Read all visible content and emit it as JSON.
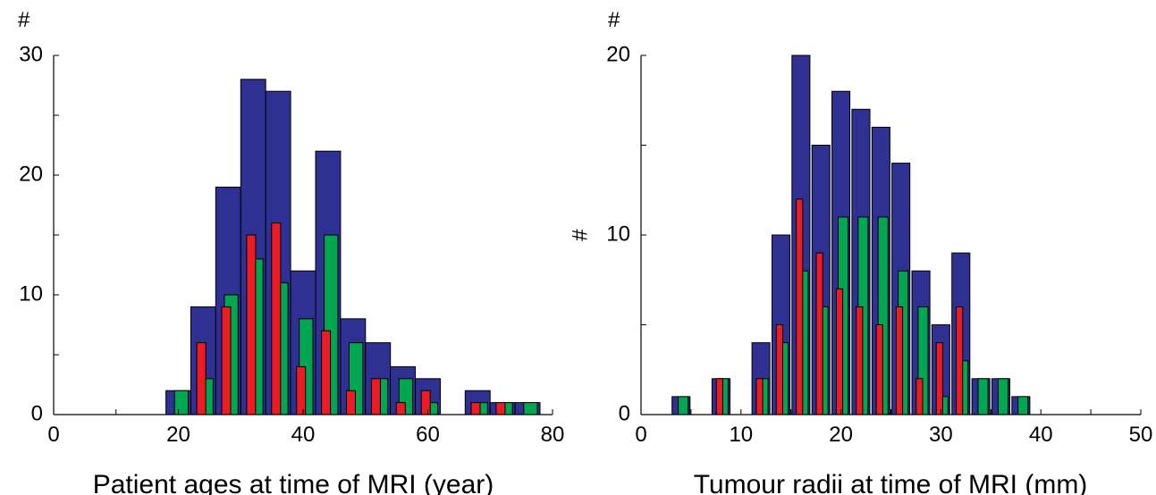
{
  "colors": {
    "all": "#2e3192",
    "green": "#00a650",
    "red": "#ed1c24",
    "edge": "#000000"
  },
  "chart_data": [
    {
      "type": "bar",
      "title": "",
      "xlabel": "Patient ages at time of MRI (year)",
      "ylabel": "#",
      "xlim": [
        0,
        80
      ],
      "ylim": [
        0,
        30
      ],
      "xticks": [
        0,
        20,
        40,
        60,
        80
      ],
      "yticks": [
        0,
        10,
        20,
        30
      ],
      "grid": false,
      "legend": "none",
      "bin_width": 4,
      "series": [
        {
          "key": "all",
          "color": "#2e3192",
          "x": [
            20,
            24,
            28,
            32,
            36,
            40,
            44,
            48,
            52,
            56,
            60,
            68,
            72,
            76
          ],
          "values": [
            2,
            9,
            19,
            28,
            27,
            12,
            22,
            8,
            6,
            4,
            3,
            2,
            1,
            1
          ]
        },
        {
          "key": "green",
          "color": "#00a650",
          "x": [
            20,
            24,
            28,
            32,
            36,
            40,
            44,
            48,
            52,
            56,
            60,
            68,
            72,
            76
          ],
          "values": [
            2,
            3,
            10,
            13,
            11,
            8,
            15,
            6,
            3,
            3,
            1,
            1,
            1,
            1
          ]
        },
        {
          "key": "red",
          "color": "#ed1c24",
          "x": [
            24,
            28,
            32,
            36,
            40,
            44,
            48,
            52,
            56,
            60,
            68,
            72
          ],
          "values": [
            6,
            9,
            15,
            16,
            4,
            7,
            2,
            3,
            1,
            2,
            1,
            1
          ]
        }
      ]
    },
    {
      "type": "bar",
      "title": "",
      "xlabel": "Tumour radii at time of MRI (mm)",
      "ylabel": "#",
      "y_side_label": "#",
      "xlim": [
        0,
        50
      ],
      "ylim": [
        0,
        20
      ],
      "xticks": [
        0,
        10,
        20,
        30,
        40,
        50
      ],
      "yticks": [
        0,
        10,
        20
      ],
      "grid": false,
      "legend": "none",
      "bin_width": 1.8,
      "series": [
        {
          "key": "all",
          "color": "#2e3192",
          "x": [
            4,
            8,
            12,
            14,
            16,
            18,
            20,
            22,
            24,
            26,
            28,
            30,
            32,
            34,
            36,
            38
          ],
          "values": [
            1,
            2,
            4,
            10,
            20,
            15,
            18,
            17,
            16,
            14,
            8,
            5,
            9,
            2,
            2,
            1
          ]
        },
        {
          "key": "green",
          "color": "#00a650",
          "x": [
            4,
            8,
            12,
            14,
            16,
            18,
            20,
            22,
            24,
            26,
            28,
            30,
            32,
            34,
            36,
            38
          ],
          "values": [
            1,
            2,
            2,
            4,
            8,
            6,
            11,
            11,
            11,
            8,
            6,
            1,
            3,
            2,
            2,
            1
          ]
        },
        {
          "key": "red",
          "color": "#ed1c24",
          "x": [
            8,
            12,
            14,
            16,
            18,
            20,
            22,
            24,
            26,
            28,
            30,
            32
          ],
          "values": [
            2,
            2,
            5,
            12,
            9,
            7,
            6,
            5,
            6,
            2,
            4,
            6
          ]
        }
      ]
    }
  ]
}
